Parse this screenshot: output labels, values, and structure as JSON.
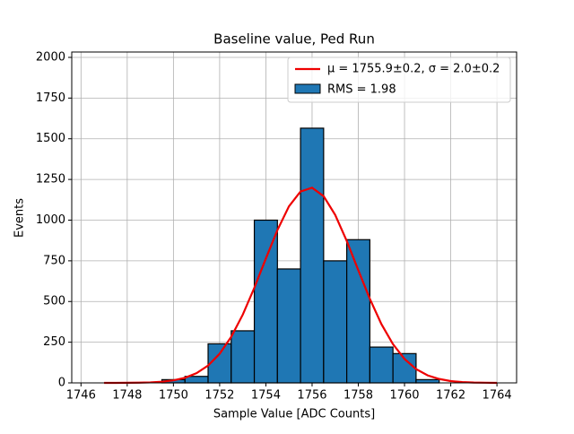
{
  "chart_data": {
    "type": "histogram",
    "title": "Baseline value, Ped Run",
    "x_label": "Sample Value [ADC Counts]",
    "y_label": "Events",
    "bins": [
      1749.5,
      1750.5,
      1751.5,
      1752.5,
      1753.5,
      1754.5,
      1755.5,
      1756.5,
      1757.5,
      1758.5,
      1759.5,
      1760.5,
      1761.5
    ],
    "counts": [
      20,
      40,
      240,
      320,
      1000,
      700,
      1565,
      750,
      880,
      220,
      180,
      20
    ],
    "name": "RMS = 1.98",
    "color": "#1f77b4",
    "edgecolor": "#000000",
    "fit": {
      "type": "line",
      "name": "μ = 1755.9±0.2, σ = 2.0±0.2",
      "color": "#ee0000",
      "x": [
        1747,
        1747.5,
        1748,
        1748.5,
        1749,
        1749.5,
        1750,
        1750.5,
        1751,
        1751.5,
        1752,
        1752.5,
        1753,
        1753.5,
        1754,
        1754.5,
        1755,
        1755.5,
        1756,
        1756.5,
        1757,
        1757.5,
        1758,
        1758.5,
        1759,
        1759.5,
        1760,
        1760.5,
        1761,
        1761.5,
        1762,
        1762.5,
        1763,
        1763.5,
        1764
      ],
      "values": [
        0,
        0.2,
        0.5,
        1.3,
        3.1,
        7.2,
        15.5,
        31.4,
        59.7,
        106.7,
        179,
        283,
        419,
        584,
        764,
        939,
        1085,
        1176,
        1199,
        1147,
        1032,
        872,
        692,
        516,
        361,
        238,
        147,
        85,
        46,
        24,
        11,
        5,
        2,
        1,
        0
      ]
    },
    "xlim": [
      1745.6,
      1764.85
    ],
    "ylim": [
      0,
      2033
    ],
    "xticks": [
      1746,
      1748,
      1750,
      1752,
      1754,
      1756,
      1758,
      1760,
      1762,
      1764
    ],
    "yticks": [
      0,
      250,
      500,
      750,
      1000,
      1250,
      1500,
      1750,
      2000
    ],
    "grid": true,
    "legend": "upper right"
  }
}
